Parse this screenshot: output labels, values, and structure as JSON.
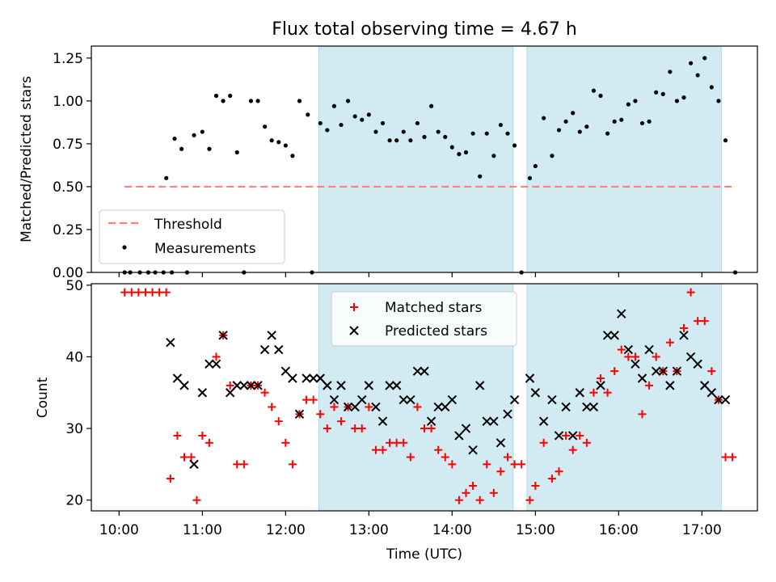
{
  "figure_title": "Flux total observing time = 4.67 h",
  "colors": {
    "shade": "#add8e6",
    "threshold": "#ff7f7f",
    "matched": "#ff0000",
    "predicted": "#000000",
    "measurement": "#000000"
  },
  "chart_data": [
    {
      "type": "scatter",
      "title": "Flux total observing time = 4.67 h",
      "xlabel": "",
      "ylabel": "Matched/Predicted stars",
      "xlim": [
        "09:40",
        "17:40"
      ],
      "ylim": [
        0,
        1.32
      ],
      "yticks": [
        "0.00",
        "0.25",
        "0.50",
        "0.75",
        "1.00",
        "1.25"
      ],
      "grid": false,
      "legend_position": "lower-left",
      "shaded_intervals": [
        [
          "12:24",
          "14:44"
        ],
        [
          "14:54",
          "17:14"
        ]
      ],
      "threshold": {
        "name": "Threshold",
        "y": 0.5,
        "x_start": "10:04",
        "x_end": "17:24",
        "style": "dashed"
      },
      "series": [
        {
          "name": "Measurements",
          "marker": "dot",
          "points": [
            [
              "10:04",
              0
            ],
            [
              "10:08",
              0
            ],
            [
              "10:15",
              0
            ],
            [
              "10:21",
              0
            ],
            [
              "10:26",
              0
            ],
            [
              "10:32",
              0
            ],
            [
              "10:38",
              0
            ],
            [
              "10:34",
              0.55
            ],
            [
              "10:40",
              0.78
            ],
            [
              "10:45",
              0.72
            ],
            [
              "10:49",
              0
            ],
            [
              "10:54",
              0.8
            ],
            [
              "11:00",
              0.82
            ],
            [
              "11:05",
              0.72
            ],
            [
              "11:10",
              1.03
            ],
            [
              "11:15",
              1.0
            ],
            [
              "11:20",
              1.03
            ],
            [
              "11:25",
              0.7
            ],
            [
              "11:30",
              0
            ],
            [
              "11:35",
              1.0
            ],
            [
              "11:40",
              1.0
            ],
            [
              "11:45",
              0.85
            ],
            [
              "11:50",
              0.77
            ],
            [
              "11:55",
              0.76
            ],
            [
              "12:00",
              0.74
            ],
            [
              "12:05",
              0.68
            ],
            [
              "12:10",
              1.0
            ],
            [
              "12:16",
              0.92
            ],
            [
              "12:19",
              0
            ],
            [
              "12:25",
              0.87
            ],
            [
              "12:30",
              0.83
            ],
            [
              "12:35",
              0.97
            ],
            [
              "12:40",
              0.86
            ],
            [
              "12:45",
              1.0
            ],
            [
              "12:50",
              0.91
            ],
            [
              "12:55",
              0.89
            ],
            [
              "13:00",
              0.92
            ],
            [
              "13:05",
              0.82
            ],
            [
              "13:10",
              0.87
            ],
            [
              "13:15",
              0.77
            ],
            [
              "13:20",
              0.77
            ],
            [
              "13:25",
              0.82
            ],
            [
              "13:30",
              0.77
            ],
            [
              "13:35",
              0.87
            ],
            [
              "13:40",
              0.79
            ],
            [
              "13:45",
              0.97
            ],
            [
              "13:50",
              0.82
            ],
            [
              "13:55",
              0.79
            ],
            [
              "14:00",
              0.73
            ],
            [
              "14:05",
              0.69
            ],
            [
              "14:10",
              0.7
            ],
            [
              "14:15",
              0.81
            ],
            [
              "14:20",
              0.56
            ],
            [
              "14:25",
              0.81
            ],
            [
              "14:30",
              0.68
            ],
            [
              "14:35",
              0.86
            ],
            [
              "14:40",
              0.81
            ],
            [
              "14:45",
              0.74
            ],
            [
              "14:50",
              0
            ],
            [
              "14:56",
              0.55
            ],
            [
              "15:00",
              0.62
            ],
            [
              "15:06",
              0.9
            ],
            [
              "15:12",
              0.68
            ],
            [
              "15:17",
              0.83
            ],
            [
              "15:22",
              0.88
            ],
            [
              "15:27",
              0.93
            ],
            [
              "15:32",
              0.82
            ],
            [
              "15:37",
              0.85
            ],
            [
              "15:42",
              1.06
            ],
            [
              "15:47",
              1.03
            ],
            [
              "15:52",
              0.81
            ],
            [
              "15:57",
              0.88
            ],
            [
              "16:02",
              0.89
            ],
            [
              "16:07",
              0.98
            ],
            [
              "16:12",
              1.0
            ],
            [
              "16:17",
              0.87
            ],
            [
              "16:22",
              0.88
            ],
            [
              "16:27",
              1.05
            ],
            [
              "16:32",
              1.04
            ],
            [
              "16:37",
              1.17
            ],
            [
              "16:42",
              1.0
            ],
            [
              "16:47",
              1.02
            ],
            [
              "16:52",
              1.22
            ],
            [
              "16:57",
              1.15
            ],
            [
              "17:02",
              1.25
            ],
            [
              "17:07",
              1.08
            ],
            [
              "17:12",
              1.0
            ],
            [
              "17:17",
              0.77
            ],
            [
              "17:24",
              0
            ]
          ]
        }
      ]
    },
    {
      "type": "scatter",
      "title": "",
      "xlabel": "Time (UTC)",
      "ylabel": "Count",
      "xlim": [
        "09:40",
        "17:40"
      ],
      "ylim": [
        18.5,
        50.2
      ],
      "yticks": [
        "20",
        "30",
        "40",
        "50"
      ],
      "xticks": [
        "10:00",
        "11:00",
        "12:00",
        "13:00",
        "14:00",
        "15:00",
        "16:00",
        "17:00"
      ],
      "grid": false,
      "legend_position": "top-center",
      "shaded_intervals": [
        [
          "12:24",
          "14:44"
        ],
        [
          "14:54",
          "17:14"
        ]
      ],
      "series": [
        {
          "name": "Matched stars",
          "marker": "plus",
          "points": [
            [
              "10:04",
              49
            ],
            [
              "10:09",
              49
            ],
            [
              "10:14",
              49
            ],
            [
              "10:19",
              49
            ],
            [
              "10:24",
              49
            ],
            [
              "10:29",
              49
            ],
            [
              "10:34",
              49
            ],
            [
              "10:37",
              23
            ],
            [
              "10:42",
              29
            ],
            [
              "10:47",
              26
            ],
            [
              "10:52",
              26
            ],
            [
              "10:56",
              20
            ],
            [
              "11:00",
              29
            ],
            [
              "11:05",
              28
            ],
            [
              "11:10",
              40
            ],
            [
              "11:15",
              43
            ],
            [
              "11:20",
              36
            ],
            [
              "11:25",
              25
            ],
            [
              "11:30",
              25
            ],
            [
              "11:35",
              36
            ],
            [
              "11:40",
              36
            ],
            [
              "11:45",
              35
            ],
            [
              "11:50",
              33
            ],
            [
              "11:55",
              31
            ],
            [
              "12:00",
              28
            ],
            [
              "12:05",
              25
            ],
            [
              "12:10",
              32
            ],
            [
              "12:15",
              34
            ],
            [
              "12:20",
              34
            ],
            [
              "12:25",
              32
            ],
            [
              "12:30",
              30
            ],
            [
              "12:35",
              33
            ],
            [
              "12:40",
              31
            ],
            [
              "12:45",
              33
            ],
            [
              "12:50",
              30
            ],
            [
              "12:55",
              30
            ],
            [
              "13:00",
              33
            ],
            [
              "13:05",
              27
            ],
            [
              "13:10",
              27
            ],
            [
              "13:15",
              28
            ],
            [
              "13:20",
              28
            ],
            [
              "13:25",
              28
            ],
            [
              "13:30",
              26
            ],
            [
              "13:35",
              33
            ],
            [
              "13:40",
              30
            ],
            [
              "13:45",
              30
            ],
            [
              "13:50",
              27
            ],
            [
              "13:55",
              26
            ],
            [
              "14:00",
              25
            ],
            [
              "14:05",
              20
            ],
            [
              "14:10",
              21
            ],
            [
              "14:15",
              22
            ],
            [
              "14:20",
              20
            ],
            [
              "14:25",
              25
            ],
            [
              "14:30",
              21
            ],
            [
              "14:35",
              24
            ],
            [
              "14:40",
              26
            ],
            [
              "14:45",
              25
            ],
            [
              "14:50",
              25
            ],
            [
              "14:56",
              20
            ],
            [
              "15:00",
              22
            ],
            [
              "15:06",
              28
            ],
            [
              "15:12",
              23
            ],
            [
              "15:17",
              24
            ],
            [
              "15:22",
              29
            ],
            [
              "15:27",
              27
            ],
            [
              "15:32",
              29
            ],
            [
              "15:37",
              28
            ],
            [
              "15:42",
              35
            ],
            [
              "15:47",
              37
            ],
            [
              "15:52",
              35
            ],
            [
              "15:57",
              38
            ],
            [
              "16:02",
              41
            ],
            [
              "16:07",
              40
            ],
            [
              "16:12",
              40
            ],
            [
              "16:17",
              32
            ],
            [
              "16:22",
              36
            ],
            [
              "16:27",
              40
            ],
            [
              "16:32",
              38
            ],
            [
              "16:37",
              42
            ],
            [
              "16:42",
              38
            ],
            [
              "16:47",
              44
            ],
            [
              "16:52",
              49
            ],
            [
              "16:57",
              45
            ],
            [
              "17:02",
              45
            ],
            [
              "17:07",
              38
            ],
            [
              "17:12",
              34
            ],
            [
              "17:17",
              26
            ],
            [
              "17:22",
              26
            ]
          ]
        },
        {
          "name": "Predicted stars",
          "marker": "x",
          "points": [
            [
              "10:37",
              42
            ],
            [
              "10:42",
              37
            ],
            [
              "10:47",
              36
            ],
            [
              "10:54",
              25
            ],
            [
              "11:00",
              35
            ],
            [
              "11:05",
              39
            ],
            [
              "11:10",
              39
            ],
            [
              "11:15",
              43
            ],
            [
              "11:20",
              35
            ],
            [
              "11:25",
              36
            ],
            [
              "11:30",
              36
            ],
            [
              "11:35",
              36
            ],
            [
              "11:40",
              36
            ],
            [
              "11:45",
              41
            ],
            [
              "11:50",
              43
            ],
            [
              "11:55",
              41
            ],
            [
              "12:00",
              38
            ],
            [
              "12:05",
              37
            ],
            [
              "12:10",
              32
            ],
            [
              "12:15",
              37
            ],
            [
              "12:20",
              37
            ],
            [
              "12:25",
              37
            ],
            [
              "12:30",
              36
            ],
            [
              "12:35",
              34
            ],
            [
              "12:40",
              36
            ],
            [
              "12:45",
              33
            ],
            [
              "12:50",
              33
            ],
            [
              "12:55",
              34
            ],
            [
              "13:00",
              36
            ],
            [
              "13:05",
              33
            ],
            [
              "13:10",
              31
            ],
            [
              "13:15",
              36
            ],
            [
              "13:20",
              36
            ],
            [
              "13:25",
              34
            ],
            [
              "13:30",
              34
            ],
            [
              "13:35",
              38
            ],
            [
              "13:40",
              38
            ],
            [
              "13:45",
              31
            ],
            [
              "13:50",
              33
            ],
            [
              "13:55",
              33
            ],
            [
              "14:00",
              34
            ],
            [
              "14:05",
              29
            ],
            [
              "14:10",
              30
            ],
            [
              "14:15",
              27
            ],
            [
              "14:20",
              36
            ],
            [
              "14:25",
              31
            ],
            [
              "14:30",
              31
            ],
            [
              "14:35",
              28
            ],
            [
              "14:40",
              32
            ],
            [
              "14:45",
              34
            ],
            [
              "14:56",
              37
            ],
            [
              "15:00",
              35
            ],
            [
              "15:06",
              31
            ],
            [
              "15:12",
              34
            ],
            [
              "15:17",
              29
            ],
            [
              "15:22",
              33
            ],
            [
              "15:27",
              29
            ],
            [
              "15:32",
              35
            ],
            [
              "15:37",
              33
            ],
            [
              "15:42",
              33
            ],
            [
              "15:47",
              36
            ],
            [
              "15:52",
              43
            ],
            [
              "15:57",
              43
            ],
            [
              "16:02",
              46
            ],
            [
              "16:07",
              41
            ],
            [
              "16:12",
              39
            ],
            [
              "16:17",
              37
            ],
            [
              "16:22",
              41
            ],
            [
              "16:27",
              38
            ],
            [
              "16:32",
              38
            ],
            [
              "16:37",
              36
            ],
            [
              "16:42",
              38
            ],
            [
              "16:47",
              43
            ],
            [
              "16:52",
              40
            ],
            [
              "16:57",
              39
            ],
            [
              "17:02",
              36
            ],
            [
              "17:07",
              35
            ],
            [
              "17:12",
              34
            ],
            [
              "17:17",
              34
            ]
          ]
        }
      ]
    }
  ]
}
